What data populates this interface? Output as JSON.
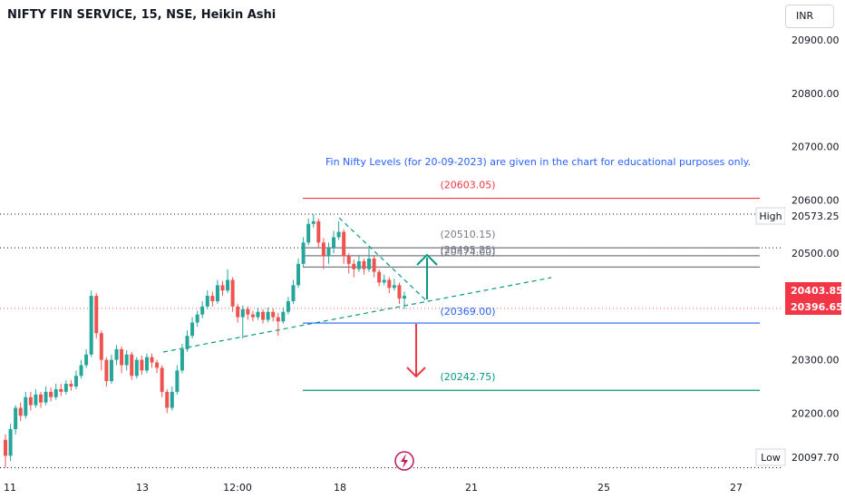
{
  "header": {
    "title": "NIFTY FIN SERVICE, 15, NSE, Heikin Ashi",
    "currency": "INR"
  },
  "colors": {
    "up": "#26a69a",
    "down": "#ef5350",
    "accent": "#2962ff",
    "resistance": "#f23645",
    "price_badge": "#f23645"
  },
  "icons": [
    "lightning-icon",
    "arrow-up-icon",
    "arrow-down-icon"
  ],
  "annotation": "Fin Nifty Levels (for 20-09-2023) are given in the chart for educational purposes only.",
  "badges": {
    "high_label": "High",
    "high_value": "20573.25",
    "low_label": "Low",
    "low_value": "20097.70",
    "price_1": "20403.85",
    "price_2": "20396.65"
  },
  "chart_data": {
    "type": "candlestick",
    "style": "Heikin Ashi",
    "ylim": [
      20090,
      20975
    ],
    "yticks": [
      "20900.00",
      "20800.00",
      "20700.00",
      "20600.00",
      "20500.00",
      "20300.00",
      "20200.00"
    ],
    "xticks": [
      "11",
      "13",
      "12:00",
      "18",
      "21",
      "25",
      "27"
    ],
    "high": 20573.25,
    "low": 20097.7,
    "last_prices": [
      20403.85,
      20396.65
    ],
    "levels": [
      {
        "label": "(20603.05)",
        "value": 20603.05,
        "color": "#f23645"
      },
      {
        "label": "(20510.15)",
        "value": 20510.15,
        "color": "#787b86"
      },
      {
        "label": "(20495.25)",
        "value": 20495.25,
        "color": "#787b86"
      },
      {
        "label": "(20474.00)",
        "value": 20474.0,
        "color": "#787b86"
      },
      {
        "label": "(20369.00)",
        "value": 20369.0,
        "color": "#2962ff"
      },
      {
        "label": "(20242.75)",
        "value": 20242.75,
        "color": "#089981"
      }
    ],
    "candles": [
      [
        20150,
        20120,
        20160,
        20097.7
      ],
      [
        20120,
        20170,
        20180,
        20110
      ],
      [
        20170,
        20210,
        20215,
        20160
      ],
      [
        20210,
        20195,
        20220,
        20185
      ],
      [
        20195,
        20230,
        20240,
        20190
      ],
      [
        20230,
        20215,
        20240,
        20205
      ],
      [
        20215,
        20235,
        20245,
        20210
      ],
      [
        20235,
        20220,
        20240,
        20210
      ],
      [
        20220,
        20240,
        20250,
        20215
      ],
      [
        20240,
        20230,
        20248,
        20222
      ],
      [
        20230,
        20245,
        20255,
        20225
      ],
      [
        20245,
        20240,
        20255,
        20232
      ],
      [
        20240,
        20255,
        20262,
        20235
      ],
      [
        20255,
        20250,
        20262,
        20242
      ],
      [
        20250,
        20270,
        20280,
        20245
      ],
      [
        20270,
        20290,
        20300,
        20265
      ],
      [
        20290,
        20310,
        20320,
        20285
      ],
      [
        20310,
        20420,
        20430,
        20305
      ],
      [
        20420,
        20350,
        20425,
        20340
      ],
      [
        20350,
        20300,
        20355,
        20280
      ],
      [
        20300,
        20260,
        20305,
        20250
      ],
      [
        20260,
        20300,
        20310,
        20255
      ],
      [
        20300,
        20320,
        20328,
        20290
      ],
      [
        20320,
        20290,
        20325,
        20275
      ],
      [
        20290,
        20310,
        20318,
        20280
      ],
      [
        20310,
        20270,
        20315,
        20262
      ],
      [
        20270,
        20300,
        20305,
        20265
      ],
      [
        20300,
        20280,
        20308,
        20272
      ],
      [
        20280,
        20305,
        20312,
        20275
      ],
      [
        20305,
        20295,
        20312,
        20285
      ],
      [
        20295,
        20285,
        20300,
        20275
      ],
      [
        20285,
        20240,
        20290,
        20230
      ],
      [
        20240,
        20210,
        20245,
        20200
      ],
      [
        20210,
        20240,
        20250,
        20205
      ],
      [
        20240,
        20280,
        20290,
        20235
      ],
      [
        20280,
        20320,
        20330,
        20275
      ],
      [
        20320,
        20345,
        20355,
        20315
      ],
      [
        20345,
        20370,
        20380,
        20340
      ],
      [
        20370,
        20385,
        20392,
        20362
      ],
      [
        20385,
        20400,
        20410,
        20378
      ],
      [
        20400,
        20420,
        20430,
        20395
      ],
      [
        20420,
        20410,
        20428,
        20400
      ],
      [
        20410,
        20440,
        20450,
        20405
      ],
      [
        20440,
        20430,
        20448,
        20420
      ],
      [
        20430,
        20450,
        20470,
        20425
      ],
      [
        20450,
        20400,
        20455,
        20390
      ],
      [
        20400,
        20380,
        20405,
        20370
      ],
      [
        20380,
        20395,
        20402,
        20340
      ],
      [
        20395,
        20385,
        20400,
        20375
      ],
      [
        20385,
        20380,
        20392,
        20372
      ],
      [
        20380,
        20390,
        20398,
        20375
      ],
      [
        20390,
        20375,
        20395,
        20368
      ],
      [
        20375,
        20390,
        20398,
        20370
      ],
      [
        20390,
        20380,
        20396,
        20372
      ],
      [
        20380,
        20372,
        20388,
        20345
      ],
      [
        20372,
        20390,
        20398,
        20368
      ],
      [
        20390,
        20410,
        20418,
        20385
      ],
      [
        20410,
        20440,
        20450,
        20405
      ],
      [
        20440,
        20480,
        20490,
        20435
      ],
      [
        20480,
        20520,
        20530,
        20475
      ],
      [
        20520,
        20555,
        20565,
        20515
      ],
      [
        20555,
        20560,
        20573.25,
        20548
      ],
      [
        20560,
        20520,
        20565,
        20510
      ],
      [
        20520,
        20495,
        20528,
        20470
      ],
      [
        20495,
        20510,
        20520,
        20480
      ],
      [
        20510,
        20530,
        20542,
        20500
      ],
      [
        20530,
        20540,
        20560,
        20525
      ],
      [
        20540,
        20495,
        20545,
        20480
      ],
      [
        20495,
        20480,
        20500,
        20462
      ],
      [
        20480,
        20470,
        20488,
        20455
      ],
      [
        20470,
        20485,
        20495,
        20465
      ],
      [
        20485,
        20470,
        20490,
        20460
      ],
      [
        20470,
        20490,
        20510,
        20465
      ],
      [
        20490,
        20465,
        20495,
        20455
      ],
      [
        20465,
        20445,
        20470,
        20438
      ],
      [
        20445,
        20450,
        20460,
        20440
      ],
      [
        20450,
        20435,
        20455,
        20425
      ],
      [
        20435,
        20440,
        20452,
        20430
      ],
      [
        20440,
        20415,
        20445,
        20405
      ],
      [
        20415,
        20420,
        20428,
        20395
      ]
    ]
  }
}
